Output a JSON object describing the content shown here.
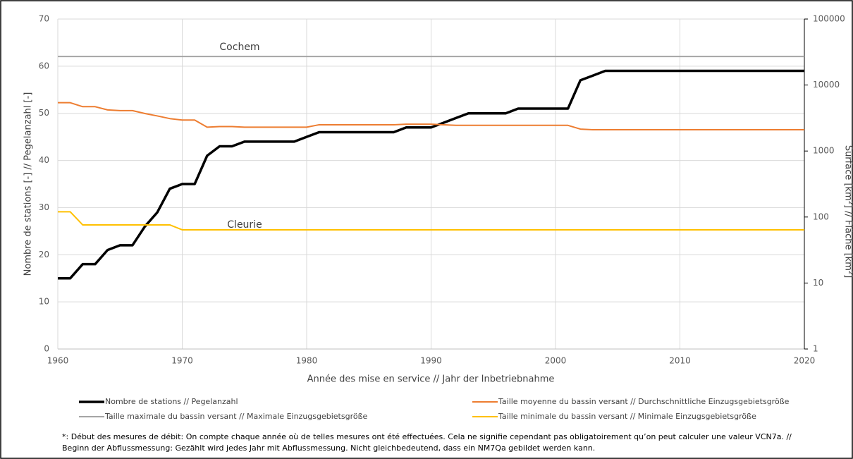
{
  "chart_data": {
    "type": "line",
    "x_label": "Année des mise en service // Jahr der Inbetriebnahme",
    "y_label": "Nombre de stations [-] // Pegelanzahl [-]",
    "y2_label": "Surface [km²] // Fläche [km²]",
    "x": [
      1960,
      1961,
      1962,
      1963,
      1964,
      1965,
      1966,
      1967,
      1968,
      1969,
      1970,
      1971,
      1972,
      1973,
      1974,
      1975,
      1976,
      1977,
      1978,
      1979,
      1980,
      1981,
      1982,
      1983,
      1984,
      1985,
      1986,
      1987,
      1988,
      1989,
      1990,
      1991,
      1992,
      1993,
      1994,
      1995,
      1996,
      1997,
      1998,
      1999,
      2000,
      2001,
      2002,
      2003,
      2004,
      2005,
      2006,
      2007,
      2008,
      2009,
      2010,
      2011,
      2012,
      2013,
      2014,
      2015,
      2016,
      2017,
      2018,
      2019,
      2020
    ],
    "xlim": [
      1960,
      2020
    ],
    "xticks": [
      1960,
      1970,
      1980,
      1990,
      2000,
      2010,
      2020
    ],
    "ylim": [
      0,
      70
    ],
    "yticks": [
      0,
      10,
      20,
      30,
      40,
      50,
      60,
      70
    ],
    "y2lim": [
      1,
      100000
    ],
    "y2ticks": [
      1,
      10,
      100,
      1000,
      10000,
      100000
    ],
    "y2log": true,
    "grid": true,
    "series": [
      {
        "name": "Nombre de stations // Pegelanzahl",
        "color": "#000000",
        "values": [
          15,
          15,
          18,
          18,
          21,
          22,
          22,
          26,
          29,
          34,
          35,
          35,
          41,
          43,
          43,
          44,
          44,
          44,
          44,
          44,
          45,
          46,
          46,
          46,
          46,
          46,
          46,
          46,
          47,
          47,
          47,
          48,
          49,
          50,
          50,
          50,
          50,
          51,
          51,
          51,
          51,
          51,
          57,
          58,
          59,
          59,
          59,
          59,
          59,
          59,
          59,
          59,
          59,
          59,
          59,
          59,
          59,
          59,
          59,
          59,
          59
        ]
      },
      {
        "name": "Taille moyenne du bassin versant // Durchschnittliche Einzugsgebietsgröße",
        "color": "#ED7D31",
        "axis": "y2",
        "values": [
          5400,
          5400,
          4700,
          4700,
          4200,
          4100,
          4100,
          3700,
          3400,
          3100,
          2950,
          2950,
          2300,
          2350,
          2350,
          2300,
          2300,
          2300,
          2300,
          2300,
          2300,
          2500,
          2500,
          2500,
          2500,
          2500,
          2500,
          2500,
          2550,
          2550,
          2550,
          2500,
          2450,
          2450,
          2450,
          2450,
          2450,
          2450,
          2450,
          2450,
          2450,
          2450,
          2150,
          2100,
          2100,
          2100,
          2100,
          2100,
          2100,
          2100,
          2100,
          2100,
          2100,
          2100,
          2100,
          2100,
          2100,
          2100,
          2100,
          2100,
          2100
        ]
      },
      {
        "name": "Taille maximale du bassin versant // Maximale Einzugsgebietsgröße",
        "color": "#A5A5A5",
        "axis": "y2",
        "values": [
          27100,
          27100,
          27100,
          27100,
          27100,
          27100,
          27100,
          27100,
          27100,
          27100,
          27100,
          27100,
          27100,
          27100,
          27100,
          27100,
          27100,
          27100,
          27100,
          27100,
          27100,
          27100,
          27100,
          27100,
          27100,
          27100,
          27100,
          27100,
          27100,
          27100,
          27100,
          27100,
          27100,
          27100,
          27100,
          27100,
          27100,
          27100,
          27100,
          27100,
          27100,
          27100,
          27100,
          27100,
          27100,
          27100,
          27100,
          27100,
          27100,
          27100,
          27100,
          27100,
          27100,
          27100,
          27100,
          27100,
          27100,
          27100,
          27100,
          27100,
          27100
        ]
      },
      {
        "name": "Taille minimale du bassin versant // Minimale Einzugsgebietsgröße",
        "color": "#FFC000",
        "axis": "y2",
        "values": [
          120,
          120,
          76,
          76,
          76,
          76,
          76,
          76,
          76,
          76,
          64,
          64,
          64,
          64,
          64,
          64,
          64,
          64,
          64,
          64,
          64,
          64,
          64,
          64,
          64,
          64,
          64,
          64,
          64,
          64,
          64,
          64,
          64,
          64,
          64,
          64,
          64,
          64,
          64,
          64,
          64,
          64,
          64,
          64,
          64,
          64,
          64,
          64,
          64,
          64,
          64,
          64,
          64,
          64,
          64,
          64,
          64,
          64,
          64,
          64,
          64
        ]
      }
    ],
    "annotations": [
      "Cochem",
      "Cleurie"
    ],
    "footnote": [
      "*: Début des mesures de débit: On compte chaque année où de telles mesures ont été effectuées. Cela ne signifie cependant pas obligatoirement qu’on peut calculer une valeur VCN7a. //",
      "Beginn der Abflussmessung: Gezählt wird jedes Jahr mit Abflussmessung. Nicht gleichbedeutend, dass ein NM7Qa gebildet werden kann."
    ]
  }
}
